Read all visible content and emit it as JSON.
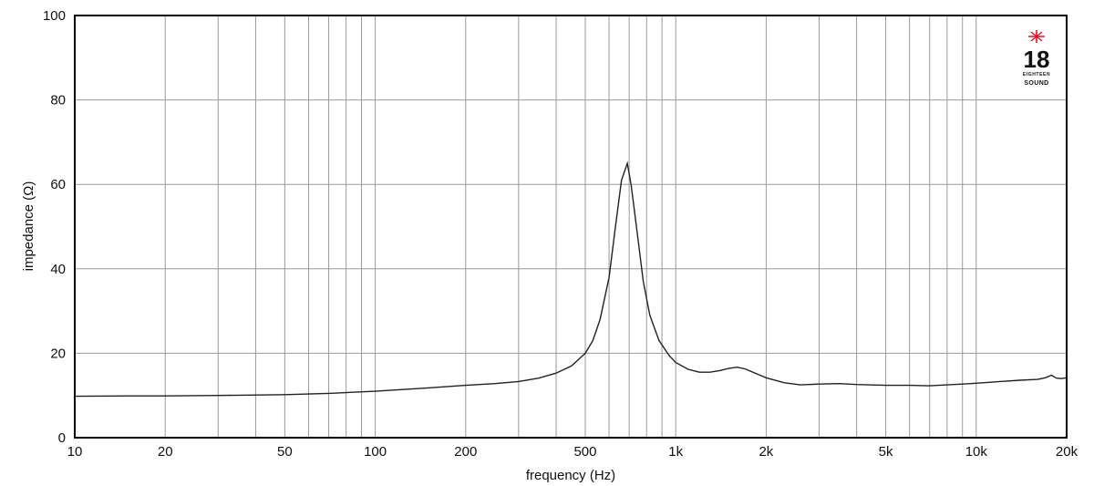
{
  "chart_data": {
    "type": "line",
    "title": "",
    "xlabel": "frequency (Hz)",
    "ylabel": "impedance (Ω)",
    "x_scale": "log",
    "xlim": [
      10,
      20000
    ],
    "ylim": [
      0,
      100
    ],
    "grid": true,
    "x_ticks": [
      10,
      20,
      50,
      100,
      200,
      500,
      1000,
      2000,
      5000,
      10000,
      20000
    ],
    "x_tick_labels": [
      "10",
      "20",
      "50",
      "100",
      "200",
      "500",
      "1k",
      "2k",
      "5k",
      "10k",
      "20k"
    ],
    "x_minor_gridlines": [
      30,
      40,
      60,
      70,
      80,
      90,
      300,
      400,
      600,
      700,
      800,
      900,
      3000,
      4000,
      6000,
      7000,
      8000,
      9000
    ],
    "y_ticks": [
      0,
      20,
      40,
      60,
      80,
      100
    ],
    "y_tick_labels": [
      "0",
      "20",
      "40",
      "60",
      "80",
      "100"
    ],
    "series": [
      {
        "color": "#222222",
        "x": [
          10,
          15,
          20,
          30,
          50,
          70,
          100,
          150,
          200,
          250,
          300,
          350,
          400,
          450,
          500,
          530,
          560,
          600,
          630,
          660,
          690,
          710,
          740,
          780,
          820,
          880,
          950,
          1000,
          1100,
          1200,
          1300,
          1400,
          1500,
          1600,
          1700,
          1850,
          2000,
          2300,
          2600,
          3000,
          3500,
          4000,
          5000,
          6000,
          7000,
          8000,
          9000,
          10000,
          12000,
          14000,
          16000,
          17000,
          17800,
          18500,
          19200,
          20000
        ],
        "y": [
          9.8,
          9.9,
          9.9,
          10.0,
          10.2,
          10.5,
          11.0,
          11.8,
          12.4,
          12.8,
          13.3,
          14.1,
          15.3,
          17.0,
          20.0,
          23.0,
          28.0,
          38.0,
          50.0,
          61.0,
          65.0,
          60.0,
          50.0,
          37.0,
          29.0,
          23.0,
          19.5,
          17.8,
          16.2,
          15.5,
          15.5,
          15.9,
          16.4,
          16.7,
          16.3,
          15.2,
          14.2,
          13.0,
          12.5,
          12.7,
          12.8,
          12.6,
          12.4,
          12.4,
          12.3,
          12.5,
          12.7,
          12.9,
          13.3,
          13.6,
          13.8,
          14.2,
          14.8,
          14.1,
          14.0,
          14.2
        ]
      }
    ]
  },
  "logo": {
    "number": "18",
    "line1": "EIGHTEEN",
    "line2": "SOUND",
    "star_color": "#e4132a"
  }
}
